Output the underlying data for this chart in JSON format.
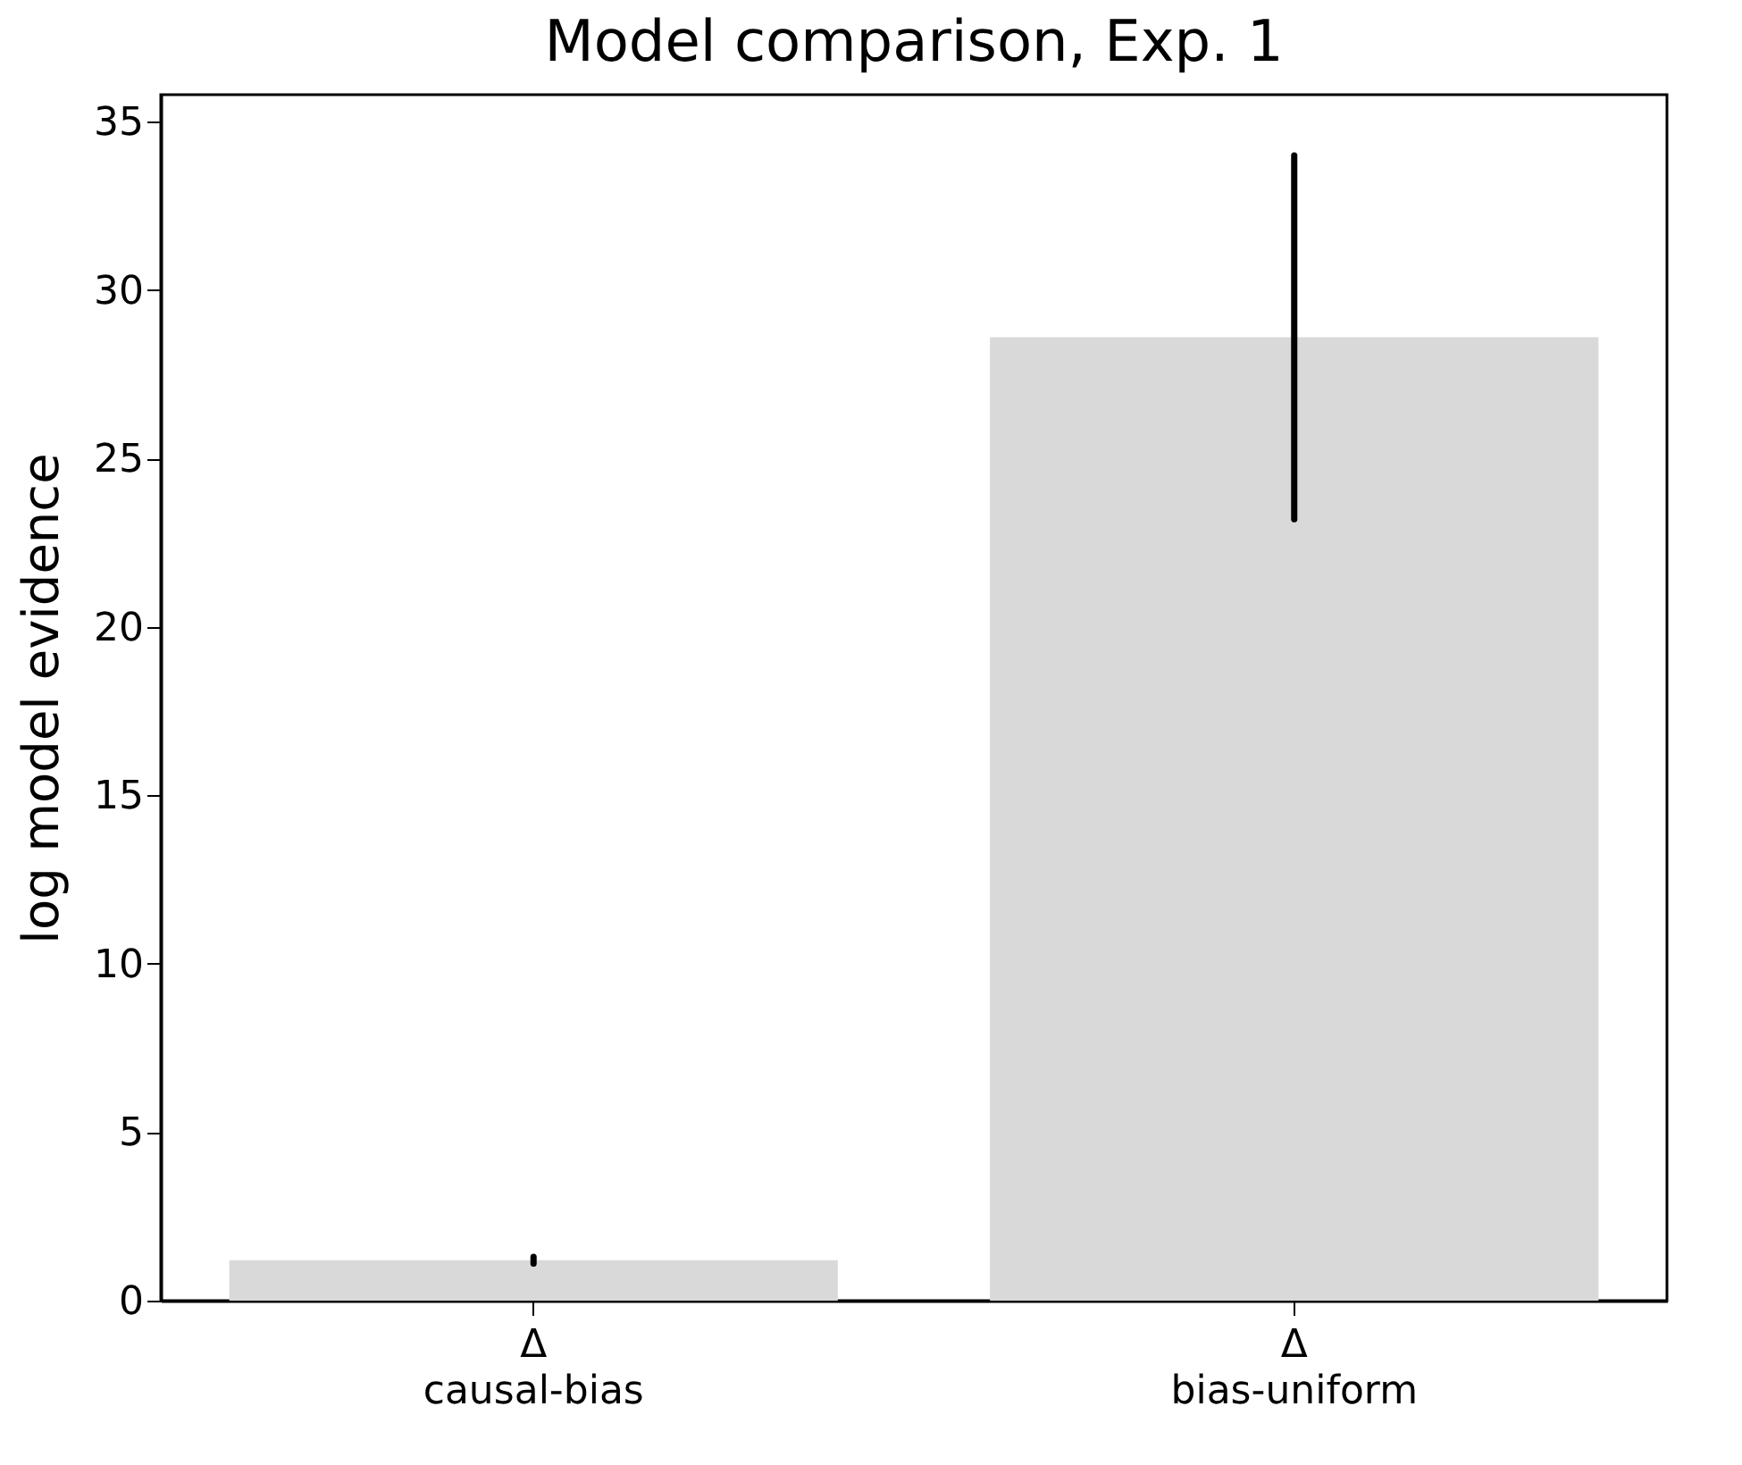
{
  "chart_data": {
    "type": "bar",
    "title": "Model comparison, Exp. 1",
    "ylabel": "log model evidence",
    "categories": [
      "Δ\ncausal-bias",
      "Δ\nbias-uniform"
    ],
    "values": [
      1.2,
      28.6
    ],
    "color": "#d9d9d9",
    "errors": [
      0.1,
      [
        23.2,
        34.0
      ]
    ],
    "ylim": [
      0,
      35.8
    ],
    "yticks": [
      0,
      5,
      10,
      15,
      20,
      25,
      30,
      35
    ],
    "grid": false
  }
}
